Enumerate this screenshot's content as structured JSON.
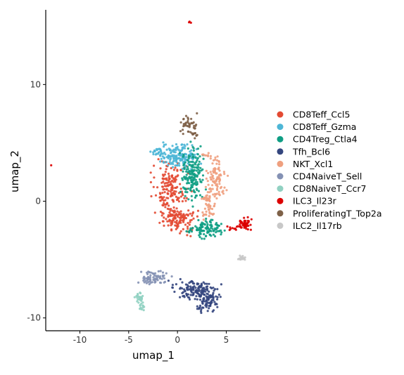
{
  "chart_data": {
    "type": "scatter",
    "xlabel": "umap_1",
    "ylabel": "umap_2",
    "xlim": [
      -13.5,
      8.5
    ],
    "ylim": [
      -11.1,
      16.4
    ],
    "xticks": [
      -10,
      -5,
      0,
      5
    ],
    "yticks": [
      -10,
      0,
      10
    ],
    "xtick_labels": [
      "-10",
      "-5",
      "0",
      "5"
    ],
    "ytick_labels": [
      "-10",
      "0",
      "10"
    ],
    "grid": false,
    "legend_position": "right",
    "series": [
      {
        "name": "CD8Teff_Ccl5",
        "color": "#E34A33",
        "clusters": [
          {
            "cx": -0.8,
            "cy": 1.0,
            "rx": 1.4,
            "ry": 1.8,
            "n": 180
          },
          {
            "cx": 0.2,
            "cy": -1.6,
            "rx": 1.3,
            "ry": 0.9,
            "n": 110
          }
        ]
      },
      {
        "name": "CD8Teff_Gzma",
        "color": "#4DB6D6",
        "clusters": [
          {
            "cx": 0.0,
            "cy": 3.8,
            "rx": 1.6,
            "ry": 0.8,
            "n": 170
          },
          {
            "cx": -2.2,
            "cy": 4.3,
            "rx": 0.6,
            "ry": 0.3,
            "n": 15
          }
        ]
      },
      {
        "name": "CD4Treg_Ctla4",
        "color": "#0F9E84",
        "clusters": [
          {
            "cx": 1.6,
            "cy": 2.2,
            "rx": 0.9,
            "ry": 1.9,
            "n": 170
          },
          {
            "cx": 2.9,
            "cy": -2.3,
            "rx": 1.3,
            "ry": 0.6,
            "n": 110
          }
        ]
      },
      {
        "name": "Tfh_Bcl6",
        "color": "#34467E",
        "clusters": [
          {
            "cx": 1.8,
            "cy": -7.6,
            "rx": 1.8,
            "ry": 0.7,
            "n": 120
          },
          {
            "cx": 3.1,
            "cy": -8.5,
            "rx": 0.9,
            "ry": 0.8,
            "n": 90
          }
        ]
      },
      {
        "name": "NKT_Xcl1",
        "color": "#EFA07F",
        "clusters": [
          {
            "cx": 4.0,
            "cy": 2.0,
            "rx": 0.8,
            "ry": 1.3,
            "n": 90
          },
          {
            "cx": 3.2,
            "cy": 0.0,
            "rx": 0.6,
            "ry": 1.1,
            "n": 60
          },
          {
            "cx": 2.8,
            "cy": 4.0,
            "rx": 0.4,
            "ry": 0.2,
            "n": 8
          }
        ]
      },
      {
        "name": "CD4NaiveT_Sell",
        "color": "#8491B4",
        "clusters": [
          {
            "cx": -2.4,
            "cy": -6.5,
            "rx": 1.2,
            "ry": 0.5,
            "n": 70
          }
        ]
      },
      {
        "name": "CD8NaiveT_Ccr7",
        "color": "#91D1C2",
        "clusters": [
          {
            "cx": -3.8,
            "cy": -8.6,
            "rx": 0.4,
            "ry": 0.8,
            "n": 40
          }
        ]
      },
      {
        "name": "ILC3_Il23r",
        "color": "#DC0000",
        "clusters": [
          {
            "cx": 6.8,
            "cy": -2.0,
            "rx": 0.6,
            "ry": 0.4,
            "n": 45
          },
          {
            "cx": 5.5,
            "cy": -2.3,
            "rx": 0.5,
            "ry": 0.2,
            "n": 10
          },
          {
            "cx": -12.9,
            "cy": 3.1,
            "rx": 0.05,
            "ry": 0.05,
            "n": 1
          },
          {
            "cx": 1.2,
            "cy": 15.3,
            "rx": 0.2,
            "ry": 0.1,
            "n": 3
          }
        ]
      },
      {
        "name": "ProliferatingT_Top2a",
        "color": "#7E6148",
        "clusters": [
          {
            "cx": 1.1,
            "cy": 6.7,
            "rx": 0.6,
            "ry": 0.7,
            "n": 40
          },
          {
            "cx": 1.7,
            "cy": 5.7,
            "rx": 0.3,
            "ry": 0.4,
            "n": 12
          }
        ]
      },
      {
        "name": "ILC2_Il17rb",
        "color": "#C8C8C8",
        "clusters": [
          {
            "cx": 6.6,
            "cy": -4.9,
            "rx": 0.4,
            "ry": 0.2,
            "n": 18
          }
        ]
      }
    ]
  }
}
